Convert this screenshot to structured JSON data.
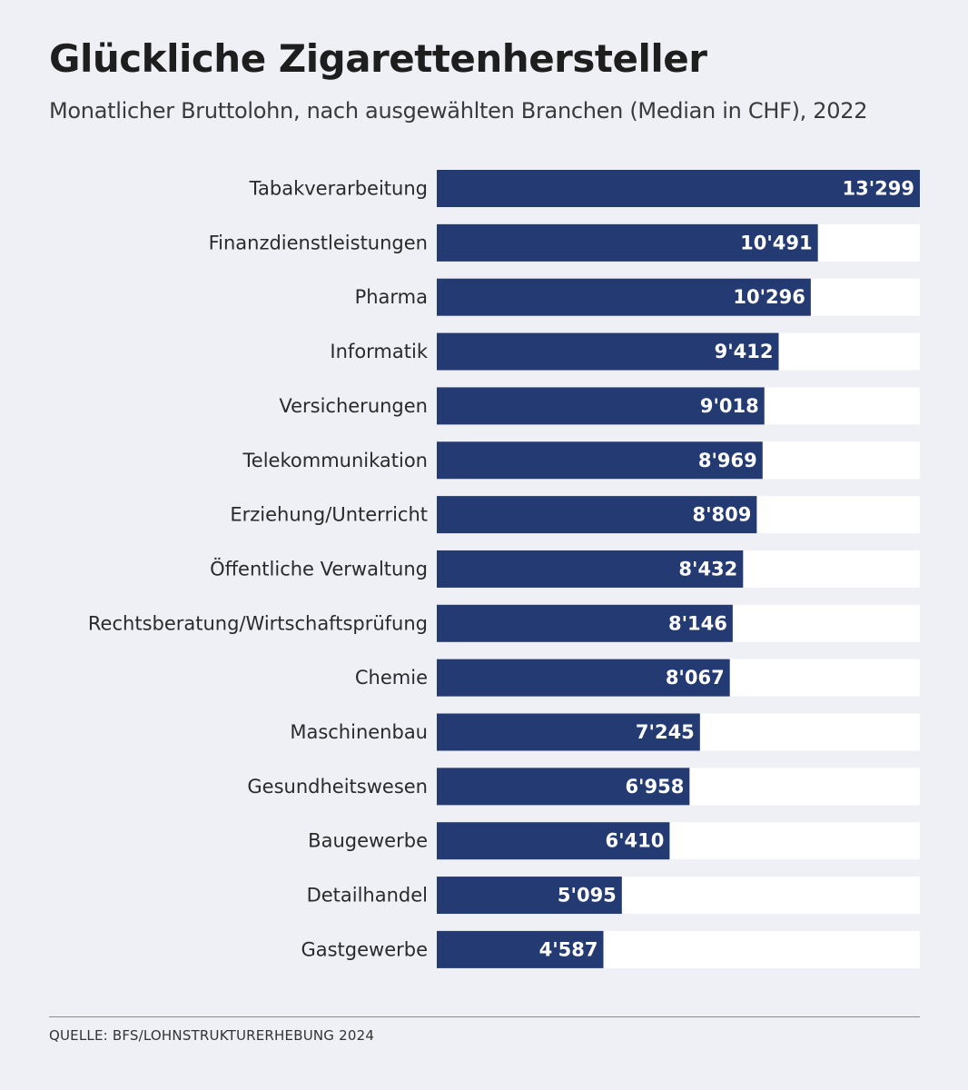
{
  "chart_data": {
    "type": "bar",
    "orientation": "horizontal",
    "title": "Glückliche Zigarettenhersteller",
    "subtitle": "Monatlicher Bruttolohn, nach ausgewählten Branchen (Median in CHF), 2022",
    "categories": [
      "Tabakverarbeitung",
      "Finanzdienstleistungen",
      "Pharma",
      "Informatik",
      "Versicherungen",
      "Telekommunikation",
      "Erziehung/Unterricht",
      "Öffentliche Verwaltung",
      "Rechtsberatung/Wirtschaftsprüfung",
      "Chemie",
      "Maschinenbau",
      "Gesundheitswesen",
      "Baugewerbe",
      "Detailhandel",
      "Gastgewerbe"
    ],
    "values": [
      13299,
      10491,
      10296,
      9412,
      9018,
      8969,
      8809,
      8432,
      8146,
      8067,
      7245,
      6958,
      6410,
      5095,
      4587
    ],
    "value_labels": [
      "13'299",
      "10'491",
      "10'296",
      "9'412",
      "9'018",
      "8'969",
      "8'809",
      "8'432",
      "8'146",
      "8'067",
      "7'245",
      "6'958",
      "6'410",
      "5'095",
      "4'587"
    ],
    "xlim": [
      0,
      13299
    ],
    "grid": false,
    "colors": {
      "bar": "#233a72",
      "track": "#ffffff",
      "background": "#eff0f5"
    },
    "source": "QUELLE: BFS/LOHNSTRUKTURERHEBUNG 2024"
  }
}
